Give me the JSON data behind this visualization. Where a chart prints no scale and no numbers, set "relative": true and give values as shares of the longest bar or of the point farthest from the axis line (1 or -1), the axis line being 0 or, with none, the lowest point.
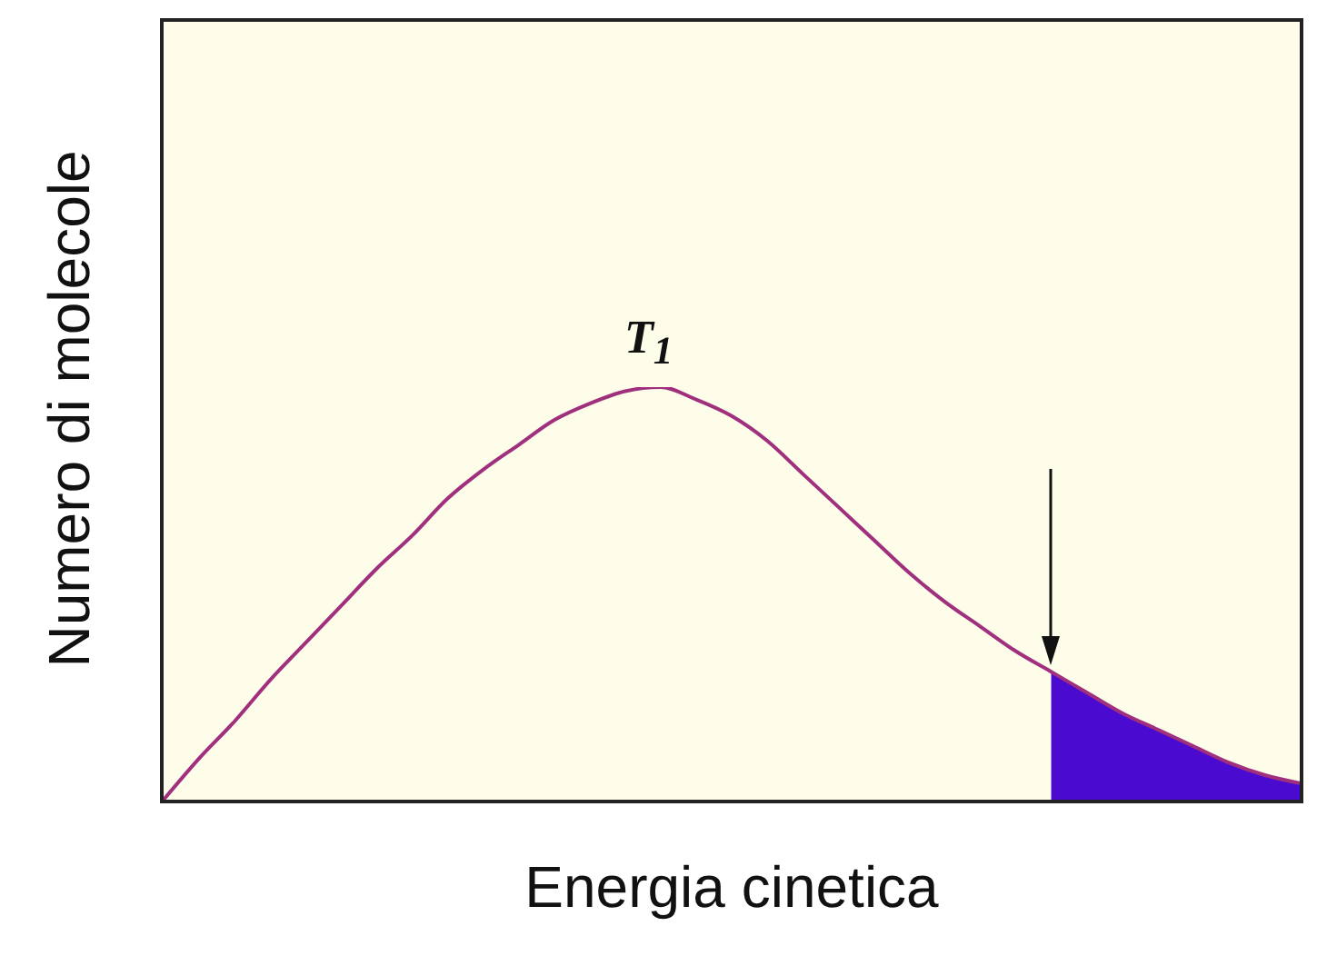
{
  "chart_data": {
    "type": "line",
    "relative": true,
    "xlabel": "Energia cinetica",
    "ylabel": "Numero di molecole",
    "annotations": [
      "T$_{1}$"
    ],
    "categories": [
      null,
      null,
      null,
      null,
      null,
      null,
      null,
      null,
      null,
      null,
      null,
      null,
      null,
      null,
      null,
      null,
      null,
      null,
      null,
      null,
      null,
      null,
      null,
      null,
      null,
      null,
      null,
      null,
      null,
      null,
      null,
      null,
      null
    ],
    "series": [
      {
        "color": "#a0307e",
        "values": [
          0,
          0.1,
          0.19,
          0.29,
          0.38,
          0.47,
          0.56,
          0.64,
          0.73,
          0.8,
          0.86,
          0.92,
          0.96,
          0.99,
          1,
          0.97,
          0.93,
          0.87,
          0.79,
          0.71,
          0.63,
          0.55,
          0.48,
          0.42,
          0.36,
          0.31,
          0.26,
          0.21,
          0.17,
          0.13,
          0.09,
          0.06,
          0.04
        ]
      },
      {
        "type": "area",
        "color": "#4a0ad0",
        "values": [
          null,
          null,
          null,
          null,
          null,
          null,
          null,
          null,
          null,
          null,
          null,
          null,
          null,
          null,
          null,
          null,
          null,
          null,
          null,
          null,
          null,
          null,
          null,
          null,
          null,
          0.31,
          0.26,
          0.21,
          0.17,
          0.13,
          0.09,
          0.06,
          0.04
        ]
      }
    ],
    "grid": false,
    "legend": false
  }
}
